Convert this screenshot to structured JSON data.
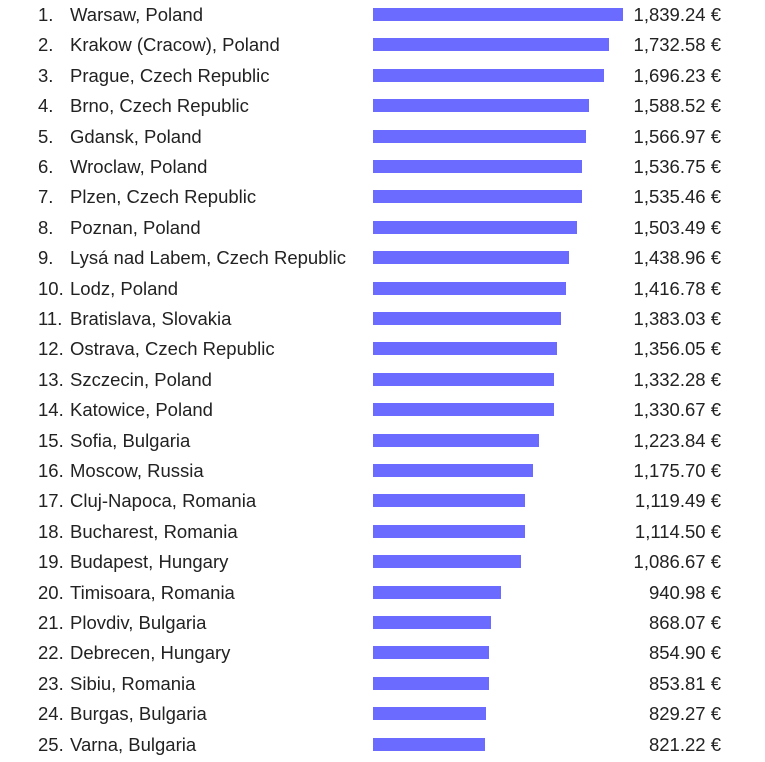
{
  "chart_data": {
    "type": "bar",
    "orientation": "horizontal",
    "bar_color": "#6b6bff",
    "value_suffix": " €",
    "xlim": [
      0,
      1839.24
    ],
    "categories": [
      "Warsaw, Poland",
      "Krakow (Cracow), Poland",
      "Prague, Czech Republic",
      "Brno, Czech Republic",
      "Gdansk, Poland",
      "Wroclaw, Poland",
      "Plzen, Czech Republic",
      "Poznan, Poland",
      "Lysá nad Labem, Czech Republic",
      "Lodz, Poland",
      "Bratislava, Slovakia",
      "Ostrava, Czech Republic",
      "Szczecin, Poland",
      "Katowice, Poland",
      "Sofia, Bulgaria",
      "Moscow, Russia",
      "Cluj-Napoca, Romania",
      "Bucharest, Romania",
      "Budapest, Hungary",
      "Timisoara, Romania",
      "Plovdiv, Bulgaria",
      "Debrecen, Hungary",
      "Sibiu, Romania",
      "Burgas, Bulgaria",
      "Varna, Bulgaria"
    ],
    "values": [
      1839.24,
      1732.58,
      1696.23,
      1588.52,
      1566.97,
      1536.75,
      1535.46,
      1503.49,
      1438.96,
      1416.78,
      1383.03,
      1356.05,
      1332.28,
      1330.67,
      1223.84,
      1175.7,
      1119.49,
      1114.5,
      1086.67,
      940.98,
      868.07,
      854.9,
      853.81,
      829.27,
      821.22
    ],
    "rank_labels": [
      "1.",
      "2.",
      "3.",
      "4.",
      "5.",
      "6.",
      "7.",
      "8.",
      "9.",
      "10.",
      "11.",
      "12.",
      "13.",
      "14.",
      "15.",
      "16.",
      "17.",
      "18.",
      "19.",
      "20.",
      "21.",
      "22.",
      "23.",
      "24.",
      "25."
    ],
    "value_labels": [
      "1,839.24 €",
      "1,732.58 €",
      "1,696.23 €",
      "1,588.52 €",
      "1,566.97 €",
      "1,536.75 €",
      "1,535.46 €",
      "1,503.49 €",
      "1,438.96 €",
      "1,416.78 €",
      "1,383.03 €",
      "1,356.05 €",
      "1,332.28 €",
      "1,330.67 €",
      "1,223.84 €",
      "1,175.70 €",
      "1,119.49 €",
      "1,114.50 €",
      "1,086.67 €",
      "940.98 €",
      "868.07 €",
      "854.90 €",
      "853.81 €",
      "829.27 €",
      "821.22 €"
    ]
  }
}
